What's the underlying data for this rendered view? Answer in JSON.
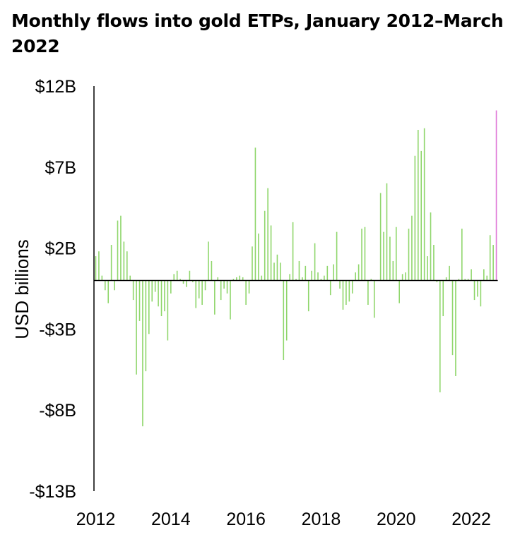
{
  "chart_data": {
    "type": "bar",
    "title": "Monthly flows into gold ETPs, January 2012–March 2022",
    "ylabel": "USD billions",
    "xlabel": "",
    "ylim": [
      -13,
      12
    ],
    "yticks": [
      12,
      7,
      2,
      -3,
      -8,
      -13
    ],
    "ytick_labels": [
      "$12B",
      "$7B",
      "$2B",
      "-$3B",
      "-$8B",
      "-$13B"
    ],
    "xticks": [
      "2012",
      "2014",
      "2016",
      "2018",
      "2020",
      "2022"
    ],
    "xtick_years": [
      2012,
      2014,
      2016,
      2018,
      2020,
      2022
    ],
    "start_year": 2012,
    "bar_color": "#8fd66b",
    "highlight_color": "#e07ad8",
    "highlight_last": true,
    "grid": false,
    "values": [
      1.5,
      1.8,
      0.3,
      -0.6,
      -1.4,
      2.2,
      -0.6,
      3.7,
      4.0,
      2.4,
      1.8,
      0.3,
      -1.2,
      -5.8,
      -2.5,
      -9.0,
      -5.6,
      -3.3,
      -1.3,
      -0.7,
      -1.6,
      -2.2,
      -1.9,
      -3.7,
      -0.8,
      0.4,
      0.6,
      0.1,
      -0.2,
      -0.4,
      0.6,
      -0.1,
      -1.7,
      -1.1,
      -1.5,
      -0.6,
      2.4,
      1.2,
      -2.1,
      0.2,
      -1.2,
      -0.5,
      -0.8,
      -2.4,
      0.1,
      0.2,
      0.3,
      0.2,
      -1.5,
      -0.8,
      2.1,
      8.2,
      2.9,
      0.3,
      4.3,
      5.7,
      3.4,
      1.1,
      1.6,
      1.1,
      -4.9,
      -3.7,
      0.4,
      3.6,
      0.1,
      1.2,
      0.2,
      0.9,
      -1.9,
      0.6,
      2.3,
      0.5,
      0.1,
      0.3,
      0.9,
      -0.9,
      1.0,
      3.0,
      -0.5,
      -1.8,
      -1.5,
      -1.3,
      -0.8,
      0.5,
      1.0,
      3.2,
      3.3,
      -1.5,
      0.1,
      -2.3,
      0,
      5.4,
      3.0,
      6.0,
      2.7,
      1.2,
      3.3,
      -1.4,
      0.4,
      0.5,
      3.2,
      4.0,
      7.7,
      9.3,
      8.0,
      9.4,
      1.5,
      4.2,
      2.2,
      -0.1,
      -6.9,
      -2.2,
      0.2,
      0.9,
      -4.6,
      -5.9,
      0.1,
      3.2,
      0.1,
      0.1,
      0.7,
      -1.2,
      -1.0,
      -1.6,
      0.7,
      0.3,
      2.8,
      2.2,
      10.5
    ]
  }
}
